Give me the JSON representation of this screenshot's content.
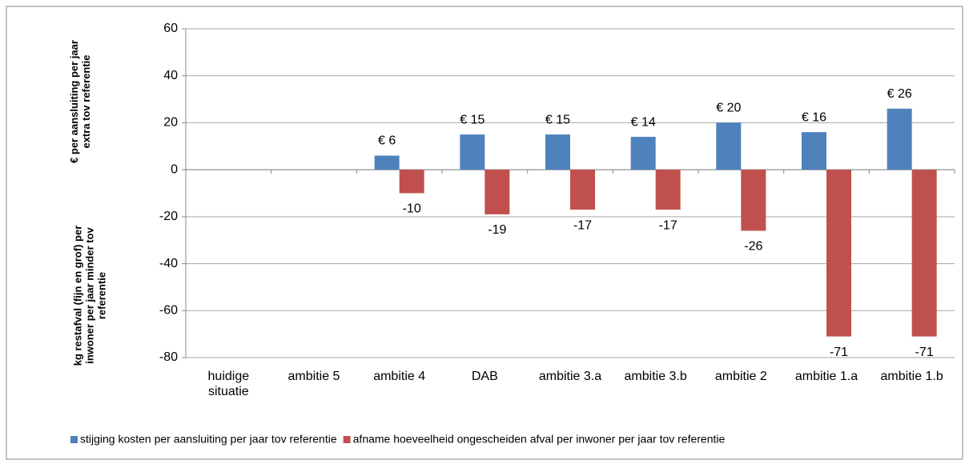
{
  "chart_data": {
    "type": "bar",
    "y_axis_labels": [
      "€ per aansluiting per jaar extra tov referentie",
      "kg restafval (fijn en grof) per inwoner per jaar minder tov referentie"
    ],
    "categories": [
      "huidige situatie",
      "ambitie 5",
      "ambitie 4",
      "DAB",
      "ambitie 3.a",
      "ambitie 3.b",
      "ambitie 2",
      "ambitie 1.a",
      "ambitie 1.b"
    ],
    "series": [
      {
        "name": "stijging kosten per aansluiting per jaar tov referentie",
        "color": "#4f81bd",
        "values": [
          null,
          null,
          6,
          15,
          15,
          14,
          20,
          16,
          26
        ],
        "value_labels": [
          null,
          null,
          "€ 6",
          "€ 15",
          "€ 15",
          "€ 14",
          "€ 20",
          "€ 16",
          "€ 26"
        ]
      },
      {
        "name": "afname hoeveelheid ongescheiden afval per inwoner per jaar tov referentie",
        "color": "#c0504d",
        "values": [
          null,
          null,
          -10,
          -19,
          -17,
          -17,
          -26,
          -71,
          -71
        ]
      }
    ],
    "ylim": [
      -80,
      60
    ],
    "yticks": [
      -80,
      -60,
      -40,
      -20,
      0,
      20,
      40,
      60
    ],
    "grid": true
  }
}
